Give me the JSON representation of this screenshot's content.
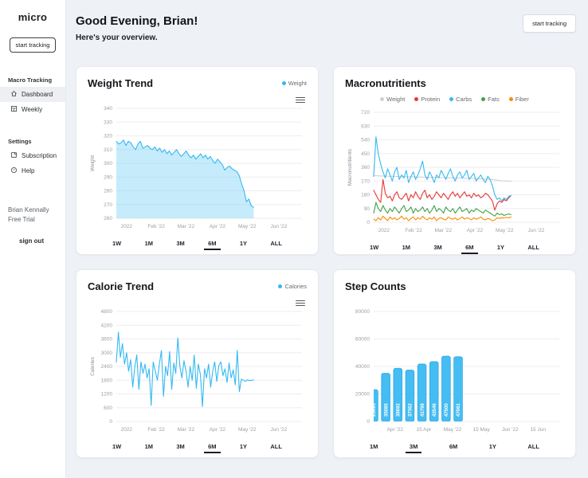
{
  "sidebar": {
    "logo": "micro",
    "start_tracking": "start tracking",
    "sections": [
      {
        "label": "Macro Tracking",
        "items": [
          {
            "label": "Dashboard",
            "icon": "home-icon",
            "selected": true
          },
          {
            "label": "Weekly",
            "icon": "calendar-grid-icon",
            "selected": false
          }
        ]
      },
      {
        "label": "Settings",
        "items": [
          {
            "label": "Subscription",
            "icon": "subscription-card-icon",
            "selected": false
          },
          {
            "label": "Help",
            "icon": "help-circle-icon",
            "selected": false
          }
        ]
      }
    ],
    "user": {
      "name": "Brian Kennally",
      "plan": "Free Trial"
    },
    "sign_out": "sign out"
  },
  "header": {
    "greeting": "Good Evening, Brian!",
    "subtitle": "Here's your overview.",
    "action": "start tracking"
  },
  "colors": {
    "blue": "#35b9f1",
    "red": "#e53935",
    "green": "#43a047",
    "orange": "#fb8c00",
    "gray": "#d0d0d0",
    "bar_fill": "#45bdf2",
    "bar_stroke": "#2baae4"
  },
  "chart_data": [
    {
      "id": "weight-trend",
      "type": "area",
      "title": "Weight Trend",
      "ylabel": "Weight",
      "ylim": [
        260,
        340
      ],
      "ystep": 10,
      "grid": true,
      "legend": [
        {
          "label": "Weight",
          "color": "#35b9f1"
        }
      ],
      "legend_position": "top-right",
      "has_menu": true,
      "xticks": [
        {
          "label": "2022",
          "pos": 0.055
        },
        {
          "label": "Feb '22",
          "pos": 0.215
        },
        {
          "label": "Mar '22",
          "pos": 0.375
        },
        {
          "label": "Apr '22",
          "pos": 0.545
        },
        {
          "label": "May '22",
          "pos": 0.705
        },
        {
          "label": "Jun '22",
          "pos": 0.875
        }
      ],
      "series": [
        {
          "name": "Weight",
          "color": "#35b9f1",
          "fill": "rgba(79,195,247,0.32)",
          "xend": 0.74,
          "values": [
            316,
            314,
            315,
            317,
            313,
            316,
            315,
            312,
            310,
            314,
            316,
            311,
            312,
            313,
            311,
            310,
            312,
            309,
            311,
            308,
            310,
            307,
            309,
            306,
            308,
            310,
            307,
            305,
            307,
            309,
            306,
            304,
            306,
            303,
            305,
            307,
            304,
            306,
            303,
            305,
            302,
            300,
            303,
            301,
            299,
            295,
            297,
            298,
            296,
            295,
            294,
            291,
            285,
            280,
            272,
            274,
            269,
            268
          ]
        }
      ],
      "ranges": [
        "1W",
        "1M",
        "3M",
        "6M",
        "1Y",
        "ALL"
      ],
      "selected_range": "6M"
    },
    {
      "id": "macronutritients",
      "type": "line",
      "title": "Macronutritients",
      "ylabel": "Macronutritients",
      "ylim": [
        0,
        720
      ],
      "ystep": 90,
      "grid": true,
      "legend": [
        {
          "label": "Weight",
          "color": "#d0d0d0"
        },
        {
          "label": "Protein",
          "color": "#e53935"
        },
        {
          "label": "Carbs",
          "color": "#35b9f1"
        },
        {
          "label": "Fats",
          "color": "#43a047"
        },
        {
          "label": "Fiber",
          "color": "#fb8c00"
        }
      ],
      "legend_position": "top-center",
      "has_menu": false,
      "xticks": [
        {
          "label": "2022",
          "pos": 0.055
        },
        {
          "label": "Feb '22",
          "pos": 0.215
        },
        {
          "label": "Mar '22",
          "pos": 0.375
        },
        {
          "label": "Apr '22",
          "pos": 0.545
        },
        {
          "label": "May '22",
          "pos": 0.705
        },
        {
          "label": "Jun '22",
          "pos": 0.875
        }
      ],
      "series": [
        {
          "name": "Weight",
          "color": "#d0d0d0",
          "xend": 0.74,
          "values": [
            305,
            304,
            304,
            303,
            303,
            302,
            302,
            301,
            301,
            300,
            300,
            300,
            299,
            299,
            298,
            298,
            298,
            297,
            297,
            296,
            296,
            296,
            295,
            295,
            294,
            294,
            294,
            293,
            293,
            292,
            292,
            292,
            291,
            291,
            290,
            290,
            290,
            289,
            289,
            288,
            288,
            287,
            287,
            286,
            286,
            285,
            285,
            284,
            283,
            282,
            281,
            280,
            278,
            276,
            274,
            272,
            271,
            270,
            269,
            268
          ]
        },
        {
          "name": "Protein",
          "color": "#e53935",
          "xend": 0.74,
          "values": [
            210,
            180,
            150,
            130,
            280,
            190,
            160,
            170,
            140,
            180,
            200,
            160,
            150,
            170,
            190,
            140,
            180,
            160,
            200,
            170,
            150,
            190,
            210,
            160,
            180,
            150,
            170,
            200,
            180,
            160,
            190,
            170,
            150,
            180,
            200,
            170,
            190,
            160,
            180,
            200,
            170,
            180,
            160,
            190,
            170,
            180,
            160,
            170,
            190,
            180,
            160,
            140,
            80,
            120,
            140,
            130,
            150,
            140,
            160,
            175
          ]
        },
        {
          "name": "Carbs",
          "color": "#35b9f1",
          "xend": 0.74,
          "values": [
            300,
            560,
            450,
            380,
            330,
            290,
            350,
            310,
            270,
            330,
            360,
            280,
            310,
            290,
            340,
            260,
            300,
            330,
            280,
            310,
            350,
            400,
            310,
            280,
            330,
            300,
            260,
            310,
            290,
            340,
            310,
            280,
            320,
            350,
            300,
            270,
            310,
            330,
            290,
            310,
            340,
            280,
            300,
            320,
            270,
            290,
            310,
            280,
            260,
            300,
            280,
            240,
            180,
            150,
            160,
            140,
            160,
            150,
            170,
            175
          ]
        },
        {
          "name": "Fats",
          "color": "#43a047",
          "xend": 0.74,
          "values": [
            60,
            130,
            90,
            70,
            110,
            80,
            60,
            90,
            70,
            100,
            80,
            60,
            90,
            110,
            70,
            80,
            100,
            60,
            90,
            70,
            80,
            100,
            70,
            90,
            60,
            80,
            110,
            70,
            90,
            80,
            60,
            100,
            80,
            70,
            90,
            60,
            80,
            100,
            70,
            80,
            90,
            60,
            80,
            70,
            90,
            80,
            70,
            60,
            80,
            70,
            60,
            50,
            40,
            60,
            50,
            55,
            45,
            50,
            55,
            50
          ]
        },
        {
          "name": "Fiber",
          "color": "#fb8c00",
          "xend": 0.74,
          "values": [
            20,
            10,
            30,
            15,
            40,
            25,
            10,
            35,
            20,
            30,
            15,
            25,
            40,
            20,
            30,
            10,
            25,
            35,
            15,
            30,
            20,
            40,
            25,
            15,
            30,
            20,
            35,
            10,
            25,
            30,
            20,
            15,
            35,
            25,
            20,
            30,
            15,
            25,
            35,
            20,
            30,
            25,
            15,
            30,
            20,
            25,
            35,
            20,
            15,
            25,
            20,
            10,
            15,
            30,
            25,
            30,
            28,
            32,
            30,
            35
          ]
        }
      ],
      "ranges": [
        "1W",
        "1M",
        "3M",
        "6M",
        "1Y",
        "ALL"
      ],
      "selected_range": "6M"
    },
    {
      "id": "calorie-trend",
      "type": "line",
      "title": "Calorie Trend",
      "ylabel": "Calories",
      "ylim": [
        0,
        4800
      ],
      "ystep": 600,
      "grid": true,
      "legend": [
        {
          "label": "Calories",
          "color": "#35b9f1"
        }
      ],
      "legend_position": "top-right",
      "has_menu": true,
      "xticks": [
        {
          "label": "2022",
          "pos": 0.055
        },
        {
          "label": "Feb '22",
          "pos": 0.215
        },
        {
          "label": "Mar '22",
          "pos": 0.375
        },
        {
          "label": "Apr '22",
          "pos": 0.545
        },
        {
          "label": "May '22",
          "pos": 0.705
        },
        {
          "label": "Jun '22",
          "pos": 0.875
        }
      ],
      "series": [
        {
          "name": "Calories",
          "color": "#35b9f1",
          "xend": 0.74,
          "values": [
            2600,
            3900,
            2800,
            3400,
            2500,
            3000,
            2200,
            2700,
            1500,
            2400,
            2900,
            1400,
            2600,
            2100,
            2500,
            1900,
            2300,
            700,
            2600,
            2200,
            1800,
            2500,
            3100,
            1100,
            2400,
            2000,
            3050,
            1400,
            2550,
            2100,
            3650,
            2400,
            1900,
            2650,
            2200,
            1500,
            2400,
            1800,
            2900,
            1450,
            2500,
            2050,
            650,
            2300,
            1900,
            2500,
            1500,
            2200,
            2600,
            1750,
            2450,
            2600,
            2000,
            2300,
            1700,
            2550,
            1900,
            2250,
            1600,
            3100,
            1300,
            1850,
            1800,
            1750,
            1820,
            1780,
            1800,
            1810
          ]
        }
      ],
      "ranges": [
        "1W",
        "1M",
        "3M",
        "6M",
        "1Y",
        "ALL"
      ],
      "selected_range": "6M"
    },
    {
      "id": "step-counts",
      "type": "bar",
      "title": "Step Counts",
      "ylabel": "",
      "ylim": [
        0,
        80000
      ],
      "ystep": 20000,
      "grid": true,
      "legend": [],
      "legend_position": "none",
      "has_menu": false,
      "xticks": [
        {
          "label": "Apr '22",
          "pos": 0.115
        },
        {
          "label": "15 Apr",
          "pos": 0.27
        },
        {
          "label": "May '22",
          "pos": 0.425
        },
        {
          "label": "15 May",
          "pos": 0.58
        },
        {
          "label": "Jun '22",
          "pos": 0.735
        },
        {
          "label": "15 Jun",
          "pos": 0.885
        }
      ],
      "values": [
        23093,
        35085,
        38692,
        37362,
        41799,
        43546,
        47500,
        47061
      ],
      "bar_labels": [
        "23093",
        "35085",
        "38692",
        "37362",
        "41799",
        "43546",
        "47500",
        "47061"
      ],
      "bar_start": 0.0,
      "bar_step": 0.065,
      "bar_width": 0.046,
      "ranges": [
        "1M",
        "3M",
        "6M",
        "1Y",
        "ALL"
      ],
      "selected_range": "3M"
    }
  ]
}
